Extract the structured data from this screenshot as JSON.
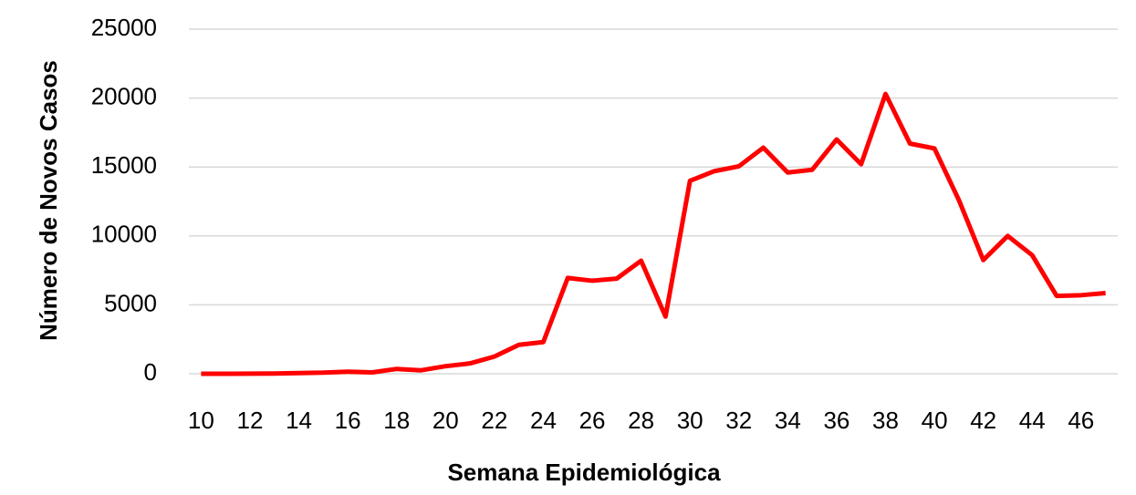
{
  "chart_data": {
    "type": "line",
    "x_label": "Semana Epidemiológica",
    "y_label": "Número de Novos Casos",
    "x": [
      10,
      11,
      12,
      13,
      14,
      15,
      16,
      17,
      18,
      19,
      20,
      21,
      22,
      23,
      24,
      25,
      26,
      27,
      28,
      29,
      30,
      31,
      32,
      33,
      34,
      35,
      36,
      37,
      38,
      39,
      40,
      41,
      42,
      43,
      44,
      45,
      46,
      47
    ],
    "series": [
      {
        "name": "Novos Casos",
        "color": "#ff0000",
        "values": [
          0,
          0,
          10,
          20,
          50,
          80,
          150,
          100,
          350,
          250,
          550,
          750,
          1250,
          2100,
          2300,
          6950,
          6750,
          6900,
          8200,
          4150,
          14000,
          14700,
          15050,
          16400,
          14600,
          14800,
          17000,
          15200,
          20300,
          16700,
          16350,
          12600,
          8250,
          10000,
          8600,
          5650,
          5700,
          5850
        ]
      }
    ],
    "xlim": [
      9.5,
      47.5
    ],
    "xticks": [
      10,
      12,
      14,
      16,
      18,
      20,
      22,
      24,
      26,
      28,
      30,
      32,
      34,
      36,
      38,
      40,
      42,
      44,
      46
    ],
    "ylim": [
      0,
      25000
    ],
    "yticks": [
      0,
      5000,
      10000,
      15000,
      20000,
      25000
    ],
    "grid": true
  }
}
